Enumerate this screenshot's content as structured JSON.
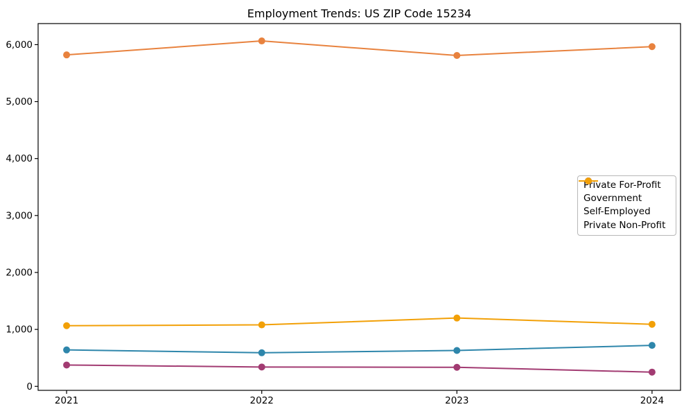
{
  "page": {
    "background_color": "#ffffff",
    "text_color": "#000000"
  },
  "chart_data": {
    "type": "line",
    "title": "Employment Trends: US ZIP Code 15234",
    "xlabel": "",
    "ylabel": "",
    "x": [
      "2021",
      "2022",
      "2023",
      "2024"
    ],
    "series": [
      {
        "name": "Private For-Profit",
        "color": "#e8823e",
        "values": [
          5820,
          6065,
          5810,
          5965
        ]
      },
      {
        "name": "Government",
        "color": "#2e86ab",
        "values": [
          640,
          590,
          630,
          720
        ]
      },
      {
        "name": "Self-Employed",
        "color": "#a23b72",
        "values": [
          375,
          340,
          335,
          250
        ]
      },
      {
        "name": "Private Non-Profit",
        "color": "#f2a007",
        "values": [
          1065,
          1080,
          1200,
          1090
        ]
      }
    ],
    "ylim": [
      -70,
      6370
    ],
    "xlim_padding_years": 0.146,
    "yticks": [
      0,
      1000,
      2000,
      3000,
      4000,
      5000,
      6000
    ],
    "ytick_labels": [
      "0",
      "1,000",
      "2,000",
      "3,000",
      "4,000",
      "5,000",
      "6,000"
    ],
    "grid": false,
    "legend_position": "center right",
    "axis_color": "#000000",
    "marker": "circle",
    "marker_radius": 5,
    "line_width": 2
  }
}
